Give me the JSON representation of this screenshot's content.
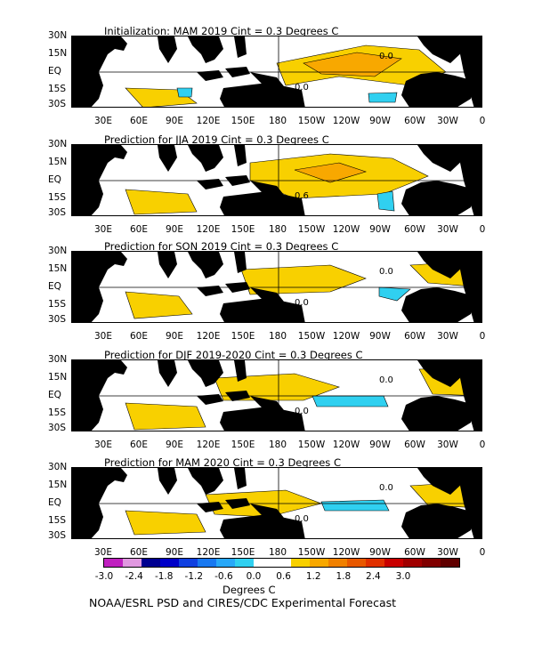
{
  "panels": [
    {
      "title": "Initialization: MAM 2019  Cint = 0.3 Degrees C",
      "contour_labels": [
        "0.0",
        "0.0"
      ]
    },
    {
      "title": "Prediction for JJA 2019  Cint = 0.3 Degrees C",
      "contour_labels": [
        "0.6"
      ]
    },
    {
      "title": "Prediction for SON 2019  Cint = 0.3 Degrees C",
      "contour_labels": [
        "0.0",
        "0.0"
      ]
    },
    {
      "title": "Prediction for DJF 2019-2020  Cint = 0.3 Degrees C",
      "contour_labels": [
        "0.0",
        "0.0"
      ]
    },
    {
      "title": "Prediction for MAM 2020  Cint = 0.3 Degrees C",
      "contour_labels": [
        "0.0",
        "0.0"
      ]
    }
  ],
  "lat_labels": [
    "30N",
    "15N",
    "EQ",
    "15S",
    "30S"
  ],
  "lon_labels": [
    "30E",
    "60E",
    "90E",
    "120E",
    "150E",
    "180",
    "150W",
    "120W",
    "90W",
    "60W",
    "30W",
    "0"
  ],
  "colorbar": {
    "labels": [
      "-3.0",
      "-2.4",
      "-1.8",
      "-1.2",
      "-0.6",
      "0.0",
      "0.6",
      "1.2",
      "1.8",
      "2.4",
      "3.0"
    ],
    "colors": [
      "#c020c0",
      "#e098e0",
      "#000090",
      "#0000c8",
      "#1040e0",
      "#1878f0",
      "#28a8f8",
      "#30d0f0",
      "#ffffff",
      "#ffffff",
      "#f8d000",
      "#f8a800",
      "#f08000",
      "#e85800",
      "#e03000",
      "#c80000",
      "#a00000",
      "#800000",
      "#600000"
    ],
    "unit": "Degrees C"
  },
  "footer": "NOAA/ESRL PSD and CIRES/CDC Experimental Forecast",
  "colors": {
    "land": "#000000",
    "warm_light": "#f8d000",
    "warm_mid": "#f8a800",
    "cool_light": "#30d0f0"
  }
}
